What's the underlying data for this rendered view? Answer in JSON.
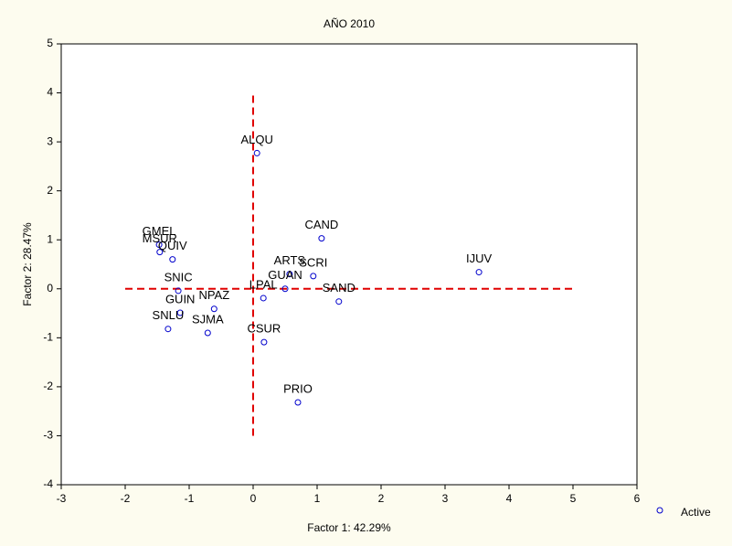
{
  "chart_data": {
    "type": "scatter",
    "title": "AÑO 2010",
    "x_label": "Factor 1: 42.29%",
    "y_label": "Factor 2: 28.47%",
    "xlim": [
      -3,
      6
    ],
    "ylim": [
      -4,
      5
    ],
    "xticks": [
      -3,
      -2,
      -1,
      0,
      1,
      2,
      3,
      4,
      5,
      6
    ],
    "yticks": [
      -4,
      -3,
      -2,
      -1,
      0,
      1,
      2,
      3,
      4,
      5
    ],
    "series": [
      {
        "name": "Active",
        "color": "#0000cc",
        "labels": [
          "ALQU",
          "CAND",
          "IJUV",
          "GMEL",
          "MSUR",
          "QUIV",
          "SNIC",
          "GUIN",
          "NPAZ",
          "SNLU",
          "SJMA",
          "LPAL",
          "ARTS",
          "SCRI",
          "GUAN",
          "SAND",
          "CSUR",
          "PRIO"
        ],
        "x": [
          0.06,
          1.07,
          3.53,
          -1.47,
          -1.46,
          -1.26,
          -1.17,
          -1.14,
          -0.61,
          -1.33,
          -0.71,
          0.16,
          0.57,
          0.94,
          0.5,
          1.34,
          0.17,
          0.7
        ],
        "values": [
          2.77,
          1.03,
          0.34,
          0.9,
          0.75,
          0.6,
          -0.04,
          -0.49,
          -0.41,
          -0.82,
          -0.9,
          -0.19,
          0.3,
          0.26,
          0.0,
          -0.26,
          -1.09,
          -2.32
        ]
      }
    ],
    "reference_lines": {
      "color": "#e00000",
      "horizontal": {
        "y": 0,
        "x_from": -2,
        "x_to": 5
      },
      "vertical": {
        "x": 0,
        "y_from": -3,
        "y_to": 4
      }
    },
    "legend": "bottom-right"
  }
}
